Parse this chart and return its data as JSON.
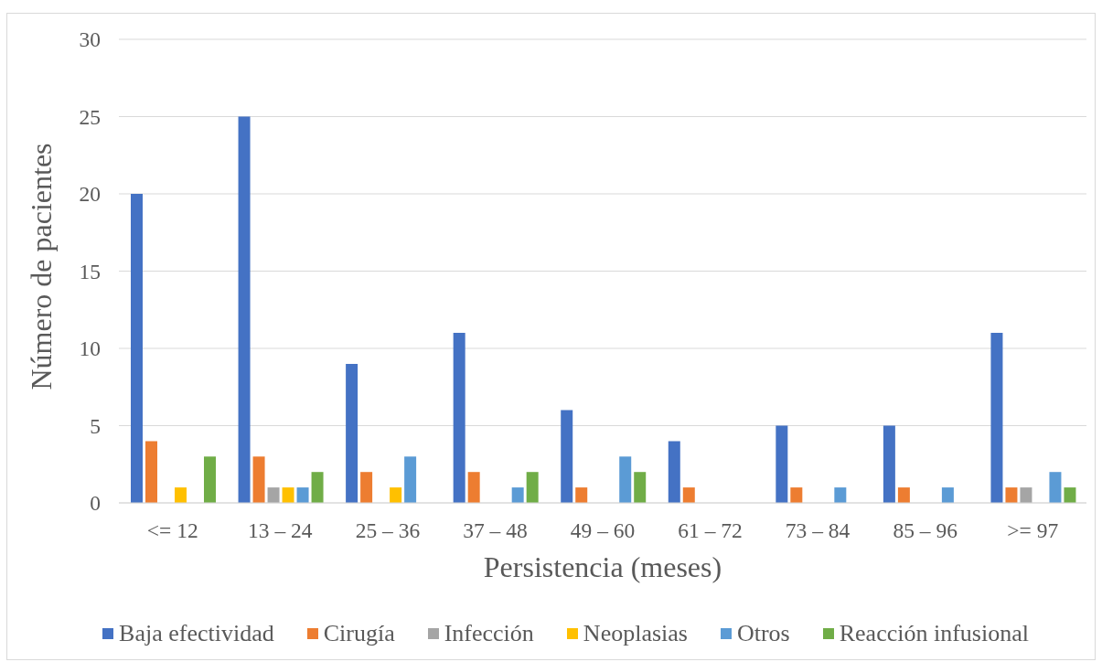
{
  "chart_data": {
    "type": "bar",
    "xlabel": "Persistencia (meses)",
    "ylabel": "Número de pacientes",
    "categories": [
      "<= 12",
      "13 – 24",
      "25 – 36",
      "37 – 48",
      "49 – 60",
      "61 – 72",
      "73 – 84",
      "85 – 96",
      ">= 97"
    ],
    "series": [
      {
        "name": "Baja efectividad",
        "color": "#4472c4",
        "values": [
          20,
          25,
          9,
          11,
          6,
          4,
          5,
          5,
          11
        ]
      },
      {
        "name": "Cirugía",
        "color": "#ed7d31",
        "values": [
          4,
          3,
          2,
          2,
          1,
          1,
          1,
          1,
          1
        ]
      },
      {
        "name": "Infección",
        "color": "#a5a5a5",
        "values": [
          null,
          1,
          null,
          null,
          null,
          null,
          null,
          null,
          1
        ]
      },
      {
        "name": "Neoplasias",
        "color": "#ffc000",
        "values": [
          1,
          1,
          1,
          null,
          null,
          null,
          null,
          null,
          null
        ]
      },
      {
        "name": "Otros",
        "color": "#5b9bd5",
        "values": [
          null,
          1,
          3,
          1,
          3,
          null,
          1,
          1,
          2
        ]
      },
      {
        "name": "Reacción infusional",
        "color": "#70ad47",
        "values": [
          3,
          2,
          null,
          2,
          2,
          null,
          null,
          null,
          1
        ]
      }
    ],
    "ylim": [
      0,
      30
    ],
    "yticks": [
      0,
      5,
      10,
      15,
      20,
      25,
      30
    ],
    "grid": "y",
    "legend": "bottom"
  }
}
